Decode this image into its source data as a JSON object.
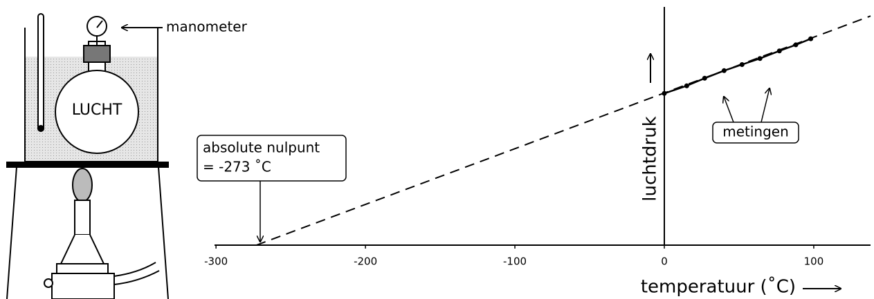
{
  "chart_data": {
    "type": "line",
    "x": [
      0,
      15,
      27,
      40,
      52,
      64,
      77,
      88,
      98
    ],
    "values": [
      1,
      1.05,
      1.1,
      1.15,
      1.19,
      1.23,
      1.28,
      1.32,
      1.36
    ],
    "extrapolation": {
      "x": [
        -273,
        138
      ],
      "values": [
        0,
        1.51
      ]
    },
    "xlim": [
      -301,
      138
    ],
    "ylim": [
      0,
      1.57
    ],
    "xticks": [
      -300,
      -200,
      -100,
      0,
      100
    ],
    "x_label": "temperatuur (˚C)",
    "y_label": "luchtdruk",
    "annotations": {
      "zero_line1": "absolute nulpunt",
      "zero_line2": "= -273 ˚C",
      "measurements": "metingen"
    },
    "apparatus": {
      "gauge": "manometer",
      "flask": "LUCHT"
    },
    "color": "#000000"
  }
}
